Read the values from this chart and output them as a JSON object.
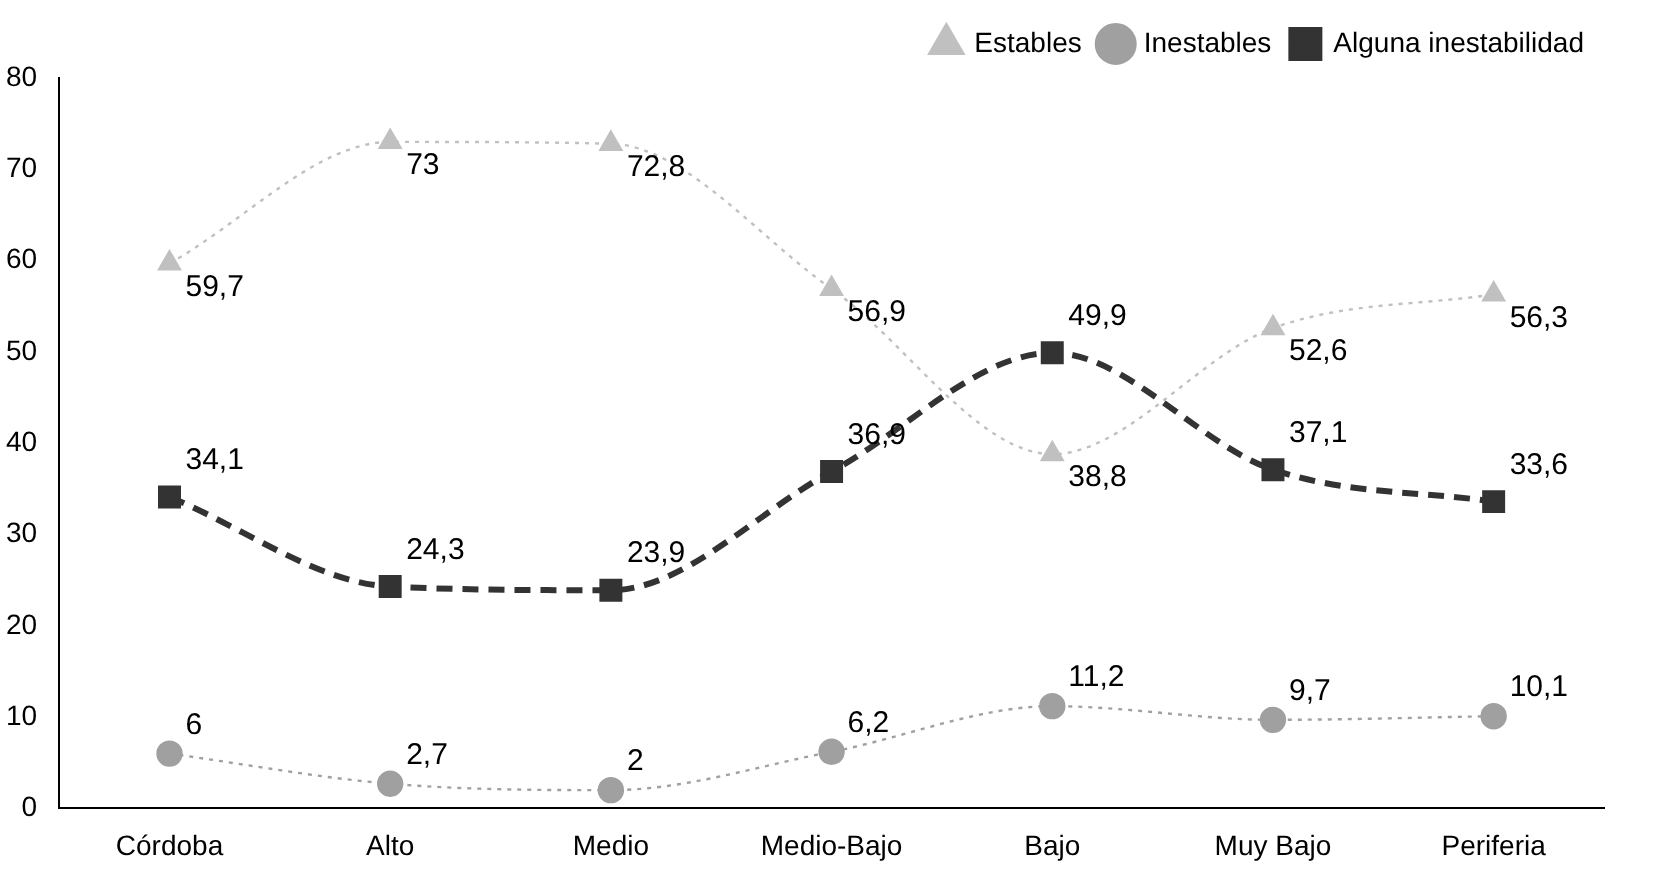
{
  "chart_data": {
    "type": "line",
    "categories": [
      "Córdoba",
      "Alto",
      "Medio",
      "Medio-Bajo",
      "Bajo",
      "Muy Bajo",
      "Periferia"
    ],
    "series": [
      {
        "name": "Estables",
        "color": "#c0c0c0",
        "marker": "triangle",
        "line_style": "dotted",
        "values": [
          59.7,
          73,
          72.8,
          56.9,
          38.8,
          52.6,
          56.3
        ],
        "value_labels": [
          "59,7",
          "73",
          "72,8",
          "56,9",
          "38,8",
          "52,6",
          "56,3"
        ]
      },
      {
        "name": "Inestables",
        "color": "#a0a0a0",
        "marker": "circle",
        "line_style": "dotted",
        "values": [
          6,
          2.7,
          2,
          6.2,
          11.2,
          9.7,
          10.1
        ],
        "value_labels": [
          "6",
          "2,7",
          "2",
          "6,2",
          "11,2",
          "9,7",
          "10,1"
        ]
      },
      {
        "name": "Alguna inestabilidad",
        "color": "#333333",
        "marker": "square",
        "line_style": "dashed",
        "values": [
          34.1,
          24.3,
          23.9,
          36.9,
          49.9,
          37.1,
          33.6
        ],
        "value_labels": [
          "34,1",
          "24,3",
          "23,9",
          "36,9",
          "49,9",
          "37,1",
          "33,6"
        ]
      }
    ],
    "ylim": [
      0,
      80
    ],
    "yticks": [
      0,
      10,
      20,
      30,
      40,
      50,
      60,
      70,
      80
    ],
    "grid": false,
    "legend": "top right"
  }
}
